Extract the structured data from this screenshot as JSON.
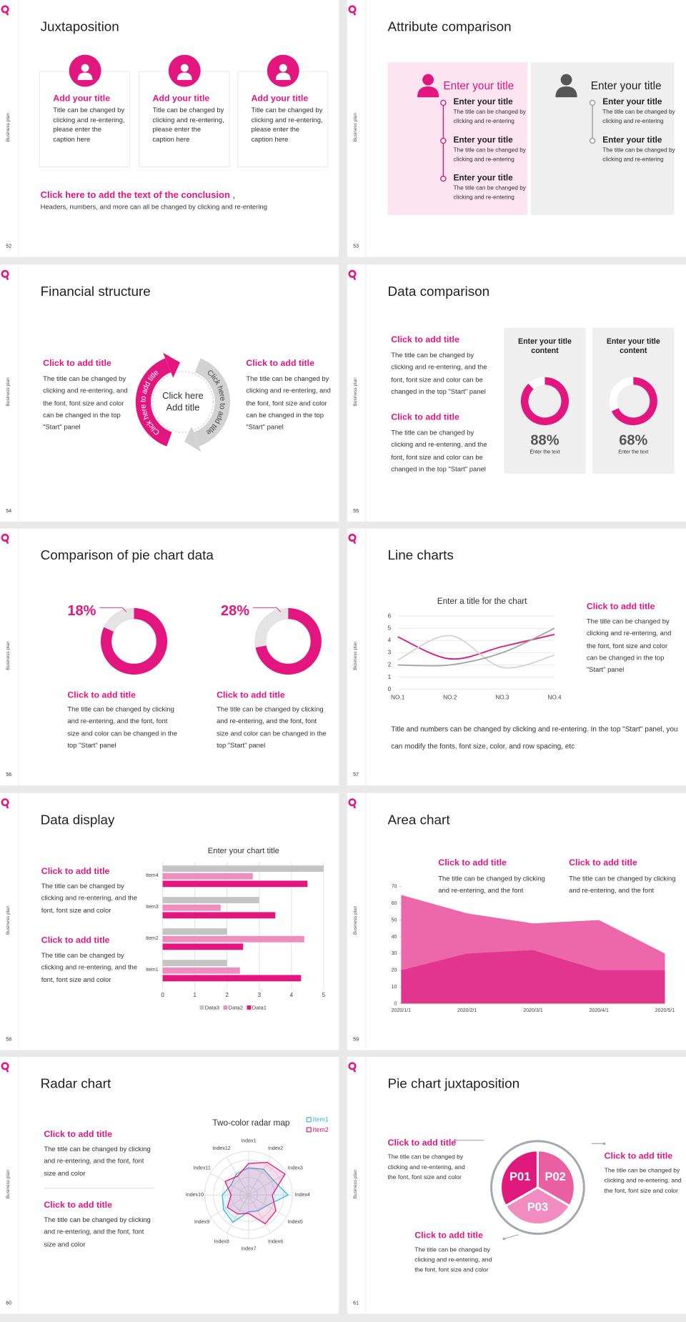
{
  "slides": [
    {
      "page": 52,
      "side_label": "Business plan",
      "title": "Juxtaposition",
      "cards": [
        {
          "title": "Add your title",
          "text": "Title can be changed by clicking and re-entering, please enter the caption here"
        },
        {
          "title": "Add your title",
          "text": "Title can be changed by clicking and re-entering, please enter the caption here"
        },
        {
          "title": "Add your title",
          "text": "Title can be changed by clicking and re-entering, please enter the caption here"
        }
      ],
      "conclusion": {
        "title": "Click here to add the text of the conclusion",
        "mark": " ,",
        "text": "Headers, numbers, and more can all be changed by clicking and re-entering"
      }
    },
    {
      "page": 53,
      "side_label": "Business plan",
      "title": "Attribute comparison",
      "panels": [
        {
          "heading": "Enter your title",
          "items": [
            {
              "title": "Enter your title",
              "text": "The title can be changed by clicking and re-entering"
            },
            {
              "title": "Enter your title",
              "text": "The title can be changed by clicking and re-entering"
            },
            {
              "title": "Enter your title",
              "text": "The title can be changed by clicking and re-entering"
            }
          ]
        },
        {
          "heading": "Enter your title",
          "items": [
            {
              "title": "Enter your title",
              "text": "The title can be changed by clicking and re-entering"
            },
            {
              "title": "Enter your title",
              "text": "The title can be changed by clicking and re-entering"
            }
          ]
        }
      ]
    },
    {
      "page": 54,
      "side_label": "Business plan",
      "title": "Financial structure",
      "items": [
        {
          "title": "Click to add title",
          "text": "The title can be changed by clicking and re-entering, and the font, font size and color can be changed in the top \"Start\" panel"
        },
        {
          "title": "Click to add title",
          "text": "The title can be changed by clicking and re-entering, and the font, font size and color can be changed in the top \"Start\" panel"
        }
      ],
      "center": "Click here Add title",
      "arc_labels": [
        "Click here to add title",
        "Click here to add title"
      ]
    },
    {
      "page": 55,
      "side_label": "Business plan",
      "title": "Data comparison",
      "items": [
        {
          "title": "Click to add title",
          "text": "The title can be changed by clicking and re-entering, and the font, font size and color can be changed in the top \"Start\" panel"
        },
        {
          "title": "Click to add title",
          "text": "The title can be changed by clicking and re-entering, and the font, font size and color can be changed in the top \"Start\" panel"
        }
      ],
      "cards": [
        {
          "title": "Enter your title content",
          "value": 88,
          "label": "88%",
          "caption": "Enter the text"
        },
        {
          "title": "Enter your title content",
          "value": 68,
          "label": "68%",
          "caption": "Enter the text"
        }
      ]
    },
    {
      "page": 56,
      "side_label": "Business plan",
      "title": "Comparison of pie chart data",
      "donuts": [
        {
          "value": 18,
          "label": "18%",
          "title": "Click to add title",
          "text": "The title can be changed by clicking and re-entering, and the font, font size and color can be changed in the top \"Start\" panel"
        },
        {
          "value": 28,
          "label": "28%",
          "title": "Click to add title",
          "text": "The title can be changed by clicking and re-entering, and the font, font size and color can be changed in the top \"Start\" panel"
        }
      ]
    },
    {
      "page": 57,
      "side_label": "Business plan",
      "title": "Line charts",
      "chart": {
        "type": "line",
        "title": "Enter a title for the chart",
        "categories": [
          "NO.1",
          "NO.2",
          "NO.3",
          "NO.4"
        ],
        "series": [
          {
            "color": "#e3167f",
            "values": [
              4.3,
              2.5,
              3.5,
              4.5
            ]
          },
          {
            "color": "#d4d4d4",
            "values": [
              2.4,
              4.4,
              1.8,
              2.8
            ]
          },
          {
            "color": "#a6a6a6",
            "values": [
              2,
              2,
              3,
              5
            ]
          }
        ],
        "ylim": [
          0,
          6
        ],
        "yticks": [
          0,
          1,
          2,
          3,
          4,
          5,
          6
        ],
        "grid": true
      },
      "item": {
        "title": "Click to add title",
        "text": "The title can be changed by clicking and re-entering, and the font, font size and color can be changed in the top \"Start\" panel"
      },
      "note": "Title and numbers can be changed by clicking and re-entering. In the top \"Start\" panel, you can modify the fonts, font size, color, and row spacing, etc"
    },
    {
      "page": 58,
      "side_label": "Business plan",
      "title": "Data display",
      "items": [
        {
          "title": "Click to add title",
          "text": "The title can be changed by clicking and re-entering, and the font, font size and color"
        },
        {
          "title": "Click to add title",
          "text": "The title can be changed by clicking and re-entering, and the font, font size and color"
        }
      ],
      "chart": {
        "type": "bar",
        "orientation": "horizontal",
        "title": "Enter your chart title",
        "categories": [
          "Item1",
          "Item2",
          "Item3",
          "Item4"
        ],
        "series": [
          {
            "name": "Data3",
            "color": "#c4c4c4",
            "values": [
              2,
              2,
              3,
              5
            ]
          },
          {
            "name": "Data2",
            "color": "#f08dbf",
            "values": [
              2.4,
              4.4,
              1.8,
              2.8
            ]
          },
          {
            "name": "Data1",
            "color": "#e3167f",
            "values": [
              4.3,
              2.5,
              3.5,
              4.5
            ]
          }
        ],
        "xlim": [
          0,
          5
        ],
        "xticks": [
          0,
          1,
          2,
          3,
          4,
          5
        ],
        "grid": true
      }
    },
    {
      "page": 59,
      "side_label": "Business plan",
      "title": "Area chart",
      "items": [
        {
          "title": "Click to add title",
          "text": "The title can be changed by clicking and re-entering, and the font"
        },
        {
          "title": "Click to add title",
          "text": "The title can be changed by clicking and re-entering, and the font"
        }
      ],
      "chart": {
        "type": "area",
        "x": [
          "2020/1/1",
          "2020/2/1",
          "2020/3/1",
          "2020/4/1",
          "2020/5/1"
        ],
        "series": [
          {
            "color": "#ec68ab",
            "values": [
              65,
              54,
              48,
              50,
              30
            ]
          },
          {
            "color": "#e2358d",
            "values": [
              20,
              30,
              32,
              20,
              20
            ]
          }
        ],
        "ylim": [
          0,
          70
        ],
        "yticks": [
          0,
          10,
          20,
          30,
          40,
          50,
          60,
          70
        ]
      }
    },
    {
      "page": 60,
      "side_label": "Business plan",
      "title": "Radar chart",
      "items": [
        {
          "title": "Click to add title",
          "text": "The title can be changed by clicking and re-entering, and the font, font size and color"
        },
        {
          "title": "Click to add title",
          "text": "The title can be changed by clicking and re-entering, and the font, font size and color"
        }
      ],
      "chart": {
        "type": "radar",
        "title": "Two-color radar map",
        "categories": [
          "Index1",
          "Index2",
          "Index3",
          "Index4",
          "Index5",
          "Index6",
          "Index7",
          "Index8",
          "Index9",
          "Index10",
          "Index11",
          "Index12"
        ],
        "series": [
          {
            "name": "Item1",
            "color": "#3bb5d6",
            "values": [
              62,
              68,
              66,
              90,
              48,
              42,
              38,
              72,
              66,
              60,
              46,
              56
            ]
          },
          {
            "name": "Item2",
            "color": "#e3167f",
            "values": [
              72,
              86,
              96,
              54,
              72,
              76,
              42,
              50,
              56,
              40,
              62,
              50
            ]
          }
        ],
        "rlim": [
          0,
          100
        ]
      }
    },
    {
      "page": 61,
      "side_label": "Business plan",
      "title": "Pie chart juxtaposition",
      "segments": [
        "P01",
        "P02",
        "P03"
      ],
      "items": [
        {
          "title": "Click to add title",
          "text": "The title can be changed by clicking and re-entering, and the font, font size and color"
        },
        {
          "title": "Click to add title",
          "text": "The title can be changed by clicking and re-entering, and the font, font size and color"
        },
        {
          "title": "Click to add title",
          "text": "The title can be changed by clicking and re-entering, and the font, font size and color"
        }
      ]
    }
  ]
}
